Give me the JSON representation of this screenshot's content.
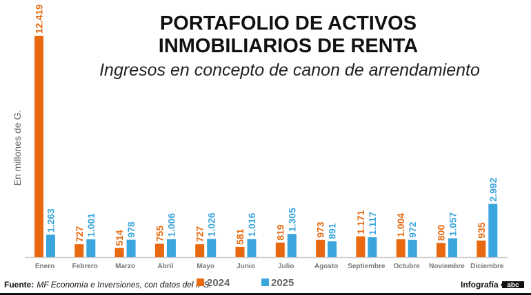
{
  "chart_data": {
    "type": "bar",
    "title": "PORTAFOLIO DE ACTIVOS INMOBILIARIOS DE RENTA",
    "title_lines": [
      "PORTAFOLIO DE ACTIVOS",
      "INMOBILIARIOS DE RENTA"
    ],
    "subtitle": "Ingresos en concepto de canon de arrendamiento",
    "ylabel": "En millones de G.",
    "xlabel": "",
    "categories": [
      "Enero",
      "Febrero",
      "Marzo",
      "Abril",
      "Mayo",
      "Junio",
      "Julio",
      "Agosto",
      "Septiembre",
      "Octubre",
      "Noviembre",
      "Diciembre"
    ],
    "series": [
      {
        "name": "2024",
        "color": "#e8690f",
        "values": [
          12419,
          727,
          514,
          755,
          727,
          581,
          819,
          973,
          1171,
          1004,
          800,
          935
        ],
        "labels": [
          "12.419",
          "727",
          "514",
          "755",
          "727",
          "581",
          "819",
          "973",
          "1.171",
          "1.004",
          "800",
          "935"
        ]
      },
      {
        "name": "2025",
        "color": "#3aa6dd",
        "values": [
          1263,
          1001,
          978,
          1006,
          1026,
          1016,
          1305,
          891,
          1117,
          972,
          1057,
          2992
        ],
        "labels": [
          "1.263",
          "1.001",
          "978",
          "1.006",
          "1.026",
          "1.016",
          "1.305",
          "891",
          "1.117",
          "972",
          "1.057",
          "2.992"
        ]
      }
    ],
    "ylim": [
      0,
      12419
    ],
    "grid": false,
    "legend_placement": "bottom"
  },
  "footer": {
    "source_label": "Fuente:",
    "source_text": "MF Economía e Inversiones, con datos del IPS.",
    "credit": "Infografía •",
    "logo_text": "abc"
  }
}
